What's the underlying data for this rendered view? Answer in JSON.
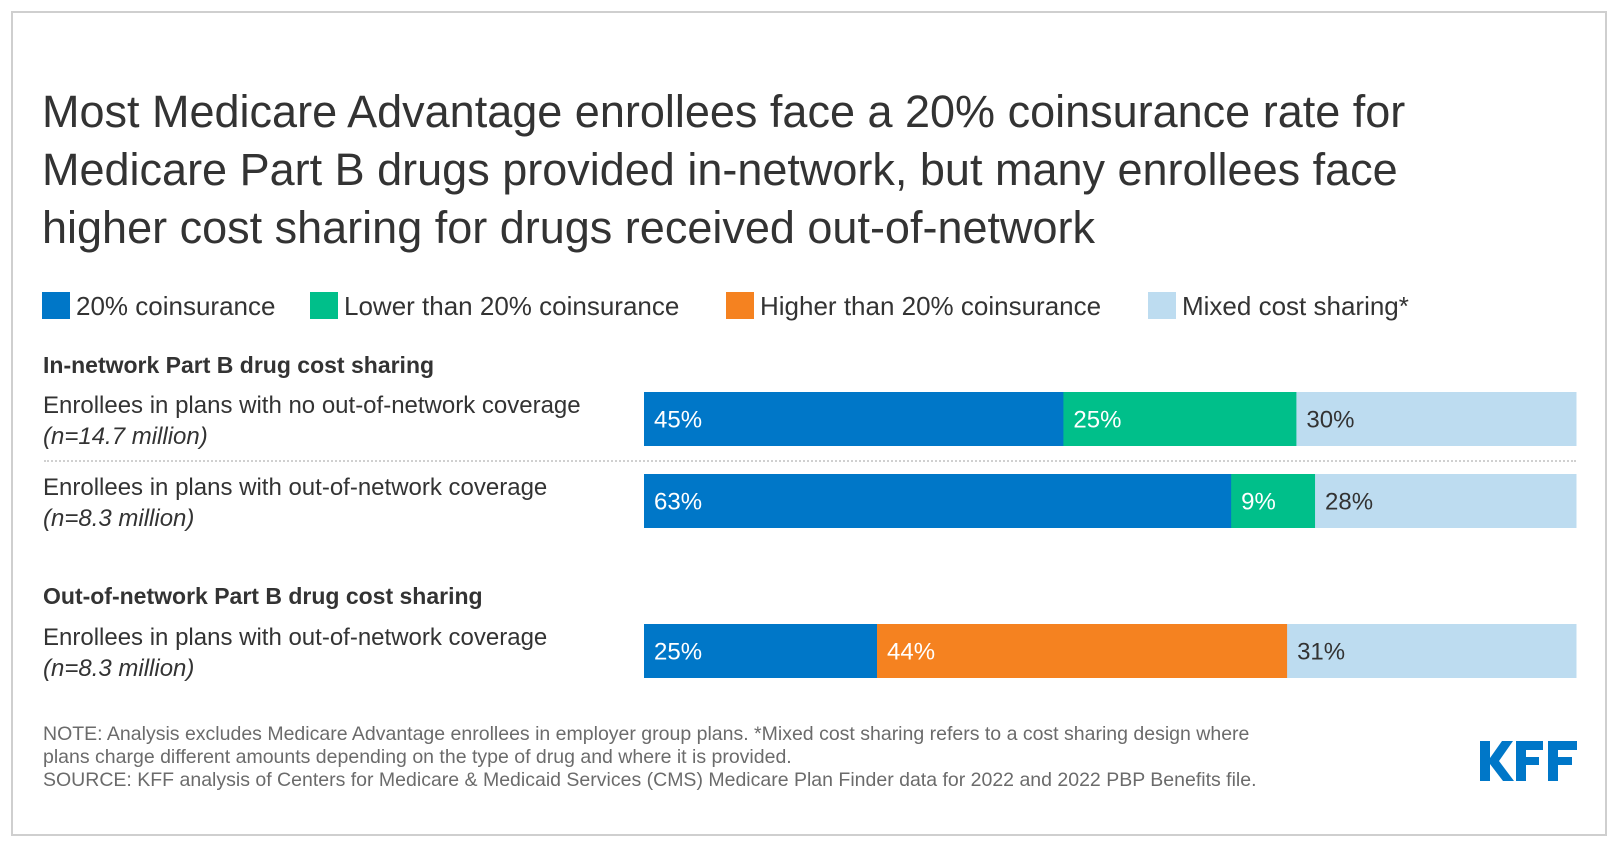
{
  "title_lines": [
    "Most Medicare Advantage enrollees face a 20% coinsurance rate for",
    "Medicare Part B drugs provided in-network, but many enrollees face",
    "higher cost sharing for drugs received out-of-network"
  ],
  "legend": [
    {
      "label": "20% coinsurance",
      "color": "#0077C8"
    },
    {
      "label": "Lower than 20% coinsurance",
      "color": "#00BF8A"
    },
    {
      "label": "Higher than 20% coinsurance",
      "color": "#F58220"
    },
    {
      "label": "Mixed cost sharing*",
      "color": "#BDDCF0"
    }
  ],
  "sections": {
    "in_network": "In-network Part B drug cost sharing",
    "out_of_network": "Out-of-network Part B drug cost sharing"
  },
  "rows": [
    {
      "label": "Enrollees in plans with no out-of-network coverage",
      "n": "(n=14.7 million)"
    },
    {
      "label": "Enrollees in plans with out-of-network coverage",
      "n": "(n=8.3 million)"
    },
    {
      "label": "Enrollees in plans with out-of-network coverage",
      "n": "(n=8.3 million)"
    }
  ],
  "chart_data": {
    "type": "bar",
    "orientation": "horizontal",
    "stacked": true,
    "percent_of_total": true,
    "title": "Most Medicare Advantage enrollees face a 20% coinsurance rate for Medicare Part B drugs provided in-network, but many enrollees face higher cost sharing for drugs received out-of-network",
    "categories": [
      "In-network: Enrollees in plans with no out-of-network coverage (n=14.7 million)",
      "In-network: Enrollees in plans with out-of-network coverage (n=8.3 million)",
      "Out-of-network: Enrollees in plans with out-of-network coverage (n=8.3 million)"
    ],
    "series": [
      {
        "name": "20% coinsurance",
        "color": "#0077C8",
        "values": [
          45,
          63,
          25
        ],
        "labels": [
          "45%",
          "63%",
          "25%"
        ],
        "label_color": "#ffffff"
      },
      {
        "name": "Lower than 20% coinsurance",
        "color": "#00BF8A",
        "values": [
          25,
          9,
          0
        ],
        "labels": [
          "25%",
          "9%",
          ""
        ],
        "label_color": "#ffffff"
      },
      {
        "name": "Higher than 20% coinsurance",
        "color": "#F58220",
        "values": [
          0,
          0,
          44
        ],
        "labels": [
          "",
          "",
          "44%"
        ],
        "label_color": "#ffffff"
      },
      {
        "name": "Mixed cost sharing*",
        "color": "#BDDCF0",
        "values": [
          30,
          28,
          31
        ],
        "labels": [
          "30%",
          "28%",
          "31%"
        ],
        "label_color": "#333333"
      }
    ],
    "xlim": [
      0,
      100
    ],
    "grid": false,
    "legend_position": "top-left",
    "xlabel": "",
    "ylabel": ""
  },
  "footer": {
    "note_line1": "NOTE: Analysis excludes Medicare Advantage enrollees in employer group plans. *Mixed cost sharing refers to a cost sharing design where",
    "note_line2": "plans charge different amounts depending on the type of drug and where it is provided.",
    "source": "SOURCE: KFF analysis of Centers for Medicare & Medicaid Services (CMS) Medicare Plan Finder data for 2022 and 2022 PBP Benefits file."
  },
  "logo": {
    "text": "KFF",
    "color": "#0077C8"
  }
}
